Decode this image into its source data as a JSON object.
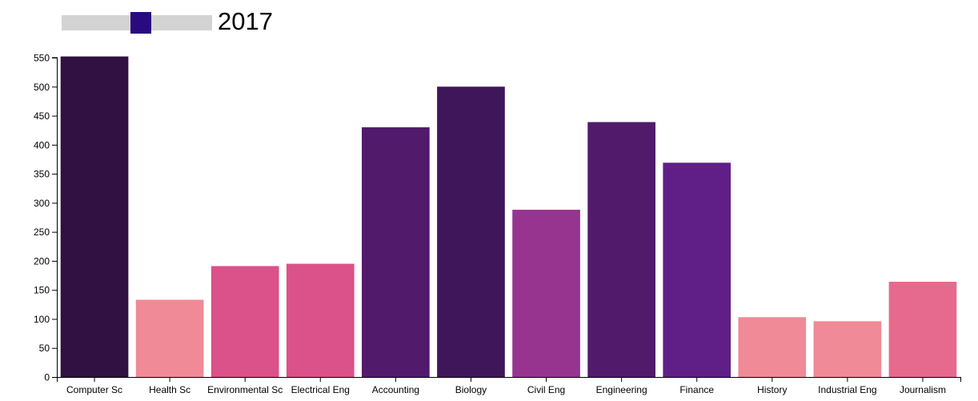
{
  "slider": {
    "year": "2017",
    "fraction": 0.53,
    "handle_color": "#2a0a80",
    "track_color": "#d3d3d3"
  },
  "chart_data": {
    "type": "bar",
    "title": "",
    "xlabel": "",
    "ylabel": "",
    "ylim": [
      0,
      550
    ],
    "yticks": [
      0,
      50,
      100,
      150,
      200,
      250,
      300,
      350,
      400,
      450,
      500,
      550
    ],
    "grid": false,
    "categories": [
      "Computer Sc",
      "Health Sc",
      "Environmental Sc",
      "Electrical Eng",
      "Accounting",
      "Biology",
      "Civil Eng",
      "Engineering",
      "Finance",
      "History",
      "Industrial Eng",
      "Journalism"
    ],
    "values": [
      552,
      133,
      191,
      195,
      430,
      500,
      288,
      439,
      369,
      103,
      96,
      164
    ],
    "colors": [
      "#311042",
      "#ef8a96",
      "#da5289",
      "#da5289",
      "#511a6b",
      "#3f1659",
      "#96348f",
      "#511a6b",
      "#5f1f87",
      "#ef8a96",
      "#ef8a96",
      "#e66a8e"
    ]
  }
}
